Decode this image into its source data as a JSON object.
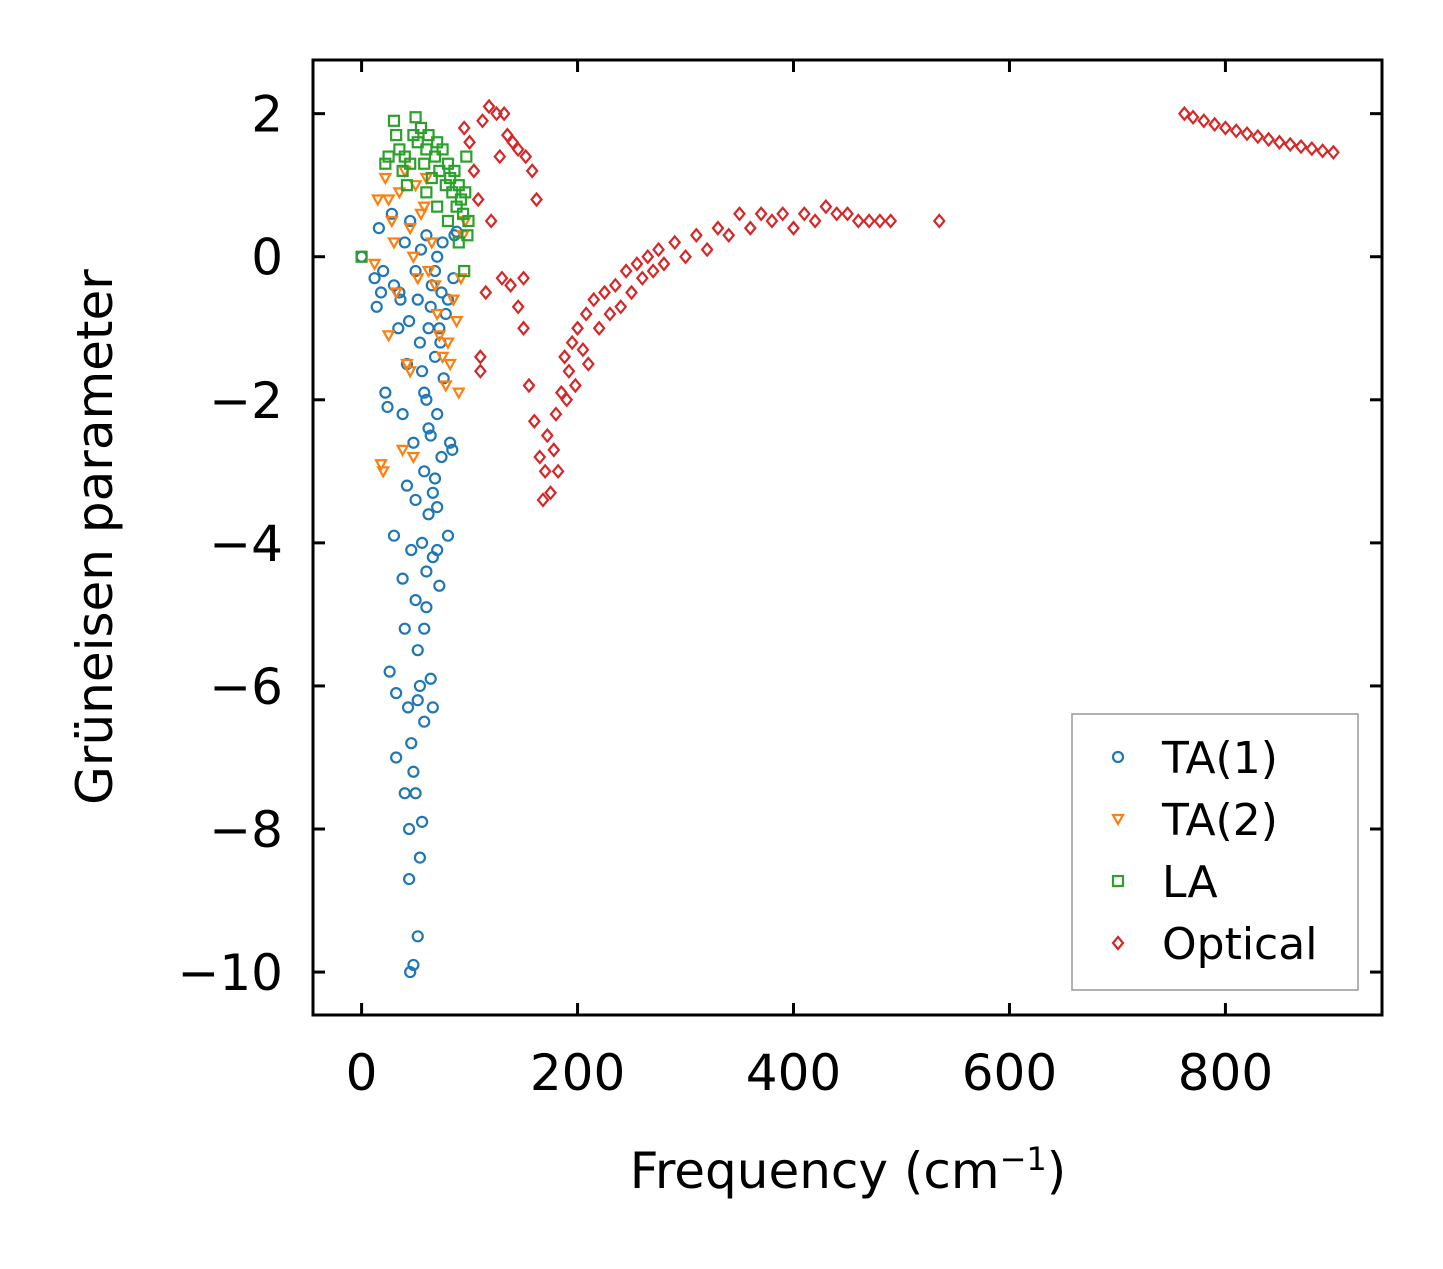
{
  "chart_data": {
    "type": "scatter",
    "title": "",
    "xlabel": "Frequency (cm",
    "xlabel_sup": "−1",
    "xlabel_close": ")",
    "ylabel": "Grüneisen parameter",
    "xlim": [
      -45,
      945
    ],
    "ylim": [
      -10.6,
      2.75
    ],
    "xticks": [
      0,
      200,
      400,
      600,
      800
    ],
    "xtick_labels": [
      "0",
      "200",
      "400",
      "600",
      "800"
    ],
    "yticks": [
      2,
      0,
      -2,
      -4,
      -6,
      -8,
      -10
    ],
    "ytick_labels": [
      "2",
      "0",
      "−2",
      "−4",
      "−6",
      "−8",
      "−10"
    ],
    "grid": false,
    "legend_position": "bottom-right",
    "series": [
      {
        "name": "TA(1)",
        "marker": "circle",
        "color": "#1f77b4",
        "points": [
          [
            0,
            0
          ],
          [
            12,
            -0.3
          ],
          [
            14,
            -0.7
          ],
          [
            16,
            0.4
          ],
          [
            18,
            -0.5
          ],
          [
            20,
            -0.2
          ],
          [
            22,
            -1.9
          ],
          [
            24,
            -2.1
          ],
          [
            26,
            -5.8
          ],
          [
            28,
            0.6
          ],
          [
            30,
            -0.4
          ],
          [
            30,
            -3.9
          ],
          [
            32,
            -6.1
          ],
          [
            32,
            -7.0
          ],
          [
            34,
            -1.0
          ],
          [
            36,
            -0.6
          ],
          [
            38,
            -2.2
          ],
          [
            38,
            -4.5
          ],
          [
            40,
            -5.2
          ],
          [
            40,
            -7.5
          ],
          [
            42,
            -1.5
          ],
          [
            42,
            -3.2
          ],
          [
            43,
            -6.3
          ],
          [
            44,
            -8.7
          ],
          [
            45,
            -10.0
          ],
          [
            46,
            -4.1
          ],
          [
            46,
            -6.8
          ],
          [
            48,
            -2.6
          ],
          [
            48,
            -9.9
          ],
          [
            50,
            -3.4
          ],
          [
            50,
            -4.8
          ],
          [
            50,
            -7.5
          ],
          [
            52,
            -9.5
          ],
          [
            52,
            -5.5
          ],
          [
            54,
            -1.2
          ],
          [
            54,
            -8.4
          ],
          [
            54,
            -6.0
          ],
          [
            56,
            -4.0
          ],
          [
            56,
            -7.9
          ],
          [
            58,
            -1.9
          ],
          [
            58,
            -3.0
          ],
          [
            58,
            -6.5
          ],
          [
            60,
            -4.4
          ],
          [
            60,
            -2.0
          ],
          [
            60,
            -4.9
          ],
          [
            62,
            -1.0
          ],
          [
            62,
            -3.6
          ],
          [
            64,
            -5.9
          ],
          [
            64,
            -2.5
          ],
          [
            66,
            -4.2
          ],
          [
            66,
            -6.3
          ],
          [
            68,
            -3.1
          ],
          [
            68,
            -1.4
          ],
          [
            70,
            -2.2
          ],
          [
            70,
            -3.5
          ],
          [
            72,
            -4.6
          ],
          [
            72,
            -1.0
          ],
          [
            74,
            -0.5
          ],
          [
            74,
            -2.8
          ],
          [
            76,
            -1.7
          ],
          [
            78,
            -0.8
          ],
          [
            80,
            -3.9
          ],
          [
            82,
            -2.6
          ],
          [
            84,
            -2.7
          ],
          [
            86,
            0.3
          ],
          [
            88,
            0.35
          ],
          [
            40,
            0.2
          ],
          [
            45,
            0.5
          ],
          [
            50,
            -0.2
          ],
          [
            55,
            0.1
          ],
          [
            60,
            0.3
          ],
          [
            65,
            -0.4
          ],
          [
            70,
            0.0
          ],
          [
            75,
            0.2
          ],
          [
            80,
            -0.6
          ],
          [
            85,
            -0.3
          ],
          [
            35,
            -0.5
          ],
          [
            44,
            -0.9
          ],
          [
            52,
            -0.6
          ],
          [
            64,
            -0.7
          ],
          [
            68,
            -0.2
          ],
          [
            73,
            -1.2
          ],
          [
            56,
            -1.6
          ],
          [
            62,
            -2.4
          ],
          [
            66,
            -3.3
          ],
          [
            70,
            -4.1
          ],
          [
            58,
            -5.2
          ],
          [
            52,
            -6.2
          ],
          [
            48,
            -7.2
          ],
          [
            44,
            -8.0
          ]
        ]
      },
      {
        "name": "TA(2)",
        "marker": "triangle-down",
        "color": "#ff7f0e",
        "points": [
          [
            12,
            -0.1
          ],
          [
            15,
            0.8
          ],
          [
            18,
            -2.9
          ],
          [
            20,
            -3.0
          ],
          [
            22,
            1.1
          ],
          [
            25,
            0.8
          ],
          [
            28,
            0.5
          ],
          [
            30,
            0.2
          ],
          [
            32,
            -0.5
          ],
          [
            35,
            0.9
          ],
          [
            38,
            -2.7
          ],
          [
            40,
            1.2
          ],
          [
            42,
            -1.5
          ],
          [
            45,
            0.4
          ],
          [
            48,
            0.0
          ],
          [
            50,
            1.0
          ],
          [
            52,
            -0.3
          ],
          [
            55,
            0.6
          ],
          [
            58,
            0.7
          ],
          [
            60,
            1.1
          ],
          [
            62,
            -0.2
          ],
          [
            65,
            0.2
          ],
          [
            68,
            -0.4
          ],
          [
            70,
            -0.8
          ],
          [
            72,
            -1.1
          ],
          [
            75,
            -1.4
          ],
          [
            78,
            -1.8
          ],
          [
            80,
            -1.2
          ],
          [
            82,
            -1.5
          ],
          [
            85,
            -0.6
          ],
          [
            88,
            -0.9
          ],
          [
            90,
            -1.9
          ],
          [
            92,
            -0.3
          ],
          [
            94,
            0.3
          ],
          [
            96,
            0.5
          ],
          [
            45,
            -1.6
          ],
          [
            48,
            -2.8
          ],
          [
            25,
            -1.1
          ]
        ]
      },
      {
        "name": "LA",
        "marker": "square",
        "color": "#2ca02c",
        "points": [
          [
            0,
            0
          ],
          [
            22,
            1.3
          ],
          [
            25,
            1.4
          ],
          [
            30,
            1.9
          ],
          [
            32,
            1.7
          ],
          [
            35,
            1.5
          ],
          [
            38,
            1.2
          ],
          [
            40,
            1.4
          ],
          [
            42,
            1.0
          ],
          [
            45,
            1.3
          ],
          [
            48,
            1.7
          ],
          [
            50,
            1.95
          ],
          [
            52,
            1.6
          ],
          [
            55,
            1.8
          ],
          [
            58,
            1.3
          ],
          [
            60,
            1.5
          ],
          [
            62,
            1.7
          ],
          [
            65,
            1.1
          ],
          [
            68,
            1.4
          ],
          [
            70,
            1.6
          ],
          [
            72,
            1.2
          ],
          [
            75,
            1.5
          ],
          [
            78,
            1.0
          ],
          [
            80,
            1.3
          ],
          [
            82,
            1.1
          ],
          [
            84,
            0.9
          ],
          [
            86,
            1.2
          ],
          [
            88,
            0.7
          ],
          [
            90,
            1.0
          ],
          [
            92,
            0.8
          ],
          [
            94,
            0.6
          ],
          [
            96,
            0.9
          ],
          [
            97,
            1.4
          ],
          [
            98,
            0.3
          ],
          [
            99,
            0.5
          ],
          [
            60,
            0.9
          ],
          [
            70,
            0.7
          ],
          [
            80,
            0.5
          ],
          [
            90,
            0.2
          ],
          [
            95,
            -0.2
          ]
        ]
      },
      {
        "name": "Optical",
        "marker": "diamond",
        "color": "#d62728",
        "points": [
          [
            95,
            1.8
          ],
          [
            100,
            1.6
          ],
          [
            104,
            1.2
          ],
          [
            108,
            0.8
          ],
          [
            110,
            -1.4
          ],
          [
            110,
            -1.6
          ],
          [
            112,
            1.9
          ],
          [
            115,
            -0.5
          ],
          [
            118,
            2.1
          ],
          [
            120,
            0.5
          ],
          [
            125,
            2.0
          ],
          [
            128,
            1.4
          ],
          [
            130,
            -0.3
          ],
          [
            132,
            2.0
          ],
          [
            135,
            1.7
          ],
          [
            138,
            -0.4
          ],
          [
            140,
            1.6
          ],
          [
            145,
            -0.7
          ],
          [
            145,
            1.5
          ],
          [
            150,
            -1.0
          ],
          [
            150,
            -0.3
          ],
          [
            152,
            1.4
          ],
          [
            155,
            -1.8
          ],
          [
            158,
            1.2
          ],
          [
            160,
            -2.3
          ],
          [
            162,
            0.8
          ],
          [
            165,
            -2.8
          ],
          [
            168,
            -3.4
          ],
          [
            170,
            -3.0
          ],
          [
            172,
            -2.5
          ],
          [
            175,
            -3.3
          ],
          [
            178,
            -2.7
          ],
          [
            180,
            -2.2
          ],
          [
            182,
            -3.0
          ],
          [
            185,
            -1.9
          ],
          [
            188,
            -1.4
          ],
          [
            190,
            -2.0
          ],
          [
            192,
            -1.6
          ],
          [
            195,
            -1.2
          ],
          [
            198,
            -1.8
          ],
          [
            200,
            -1.0
          ],
          [
            205,
            -1.3
          ],
          [
            208,
            -0.8
          ],
          [
            210,
            -1.5
          ],
          [
            215,
            -0.6
          ],
          [
            220,
            -1.0
          ],
          [
            225,
            -0.5
          ],
          [
            230,
            -0.8
          ],
          [
            235,
            -0.4
          ],
          [
            240,
            -0.7
          ],
          [
            245,
            -0.2
          ],
          [
            250,
            -0.5
          ],
          [
            255,
            -0.1
          ],
          [
            260,
            -0.3
          ],
          [
            265,
            0.0
          ],
          [
            270,
            -0.2
          ],
          [
            275,
            0.1
          ],
          [
            280,
            -0.1
          ],
          [
            290,
            0.2
          ],
          [
            300,
            0.0
          ],
          [
            310,
            0.3
          ],
          [
            320,
            0.1
          ],
          [
            330,
            0.4
          ],
          [
            340,
            0.3
          ],
          [
            350,
            0.6
          ],
          [
            360,
            0.4
          ],
          [
            370,
            0.6
          ],
          [
            380,
            0.5
          ],
          [
            390,
            0.6
          ],
          [
            400,
            0.4
          ],
          [
            410,
            0.6
          ],
          [
            420,
            0.5
          ],
          [
            430,
            0.7
          ],
          [
            440,
            0.6
          ],
          [
            450,
            0.6
          ],
          [
            460,
            0.5
          ],
          [
            470,
            0.5
          ],
          [
            480,
            0.5
          ],
          [
            490,
            0.5
          ],
          [
            535,
            0.5
          ],
          [
            762,
            2.0
          ],
          [
            770,
            1.95
          ],
          [
            780,
            1.9
          ],
          [
            790,
            1.85
          ],
          [
            800,
            1.8
          ],
          [
            810,
            1.76
          ],
          [
            820,
            1.72
          ],
          [
            830,
            1.68
          ],
          [
            840,
            1.64
          ],
          [
            850,
            1.6
          ],
          [
            860,
            1.57
          ],
          [
            870,
            1.54
          ],
          [
            880,
            1.51
          ],
          [
            890,
            1.48
          ],
          [
            900,
            1.46
          ]
        ]
      }
    ]
  }
}
